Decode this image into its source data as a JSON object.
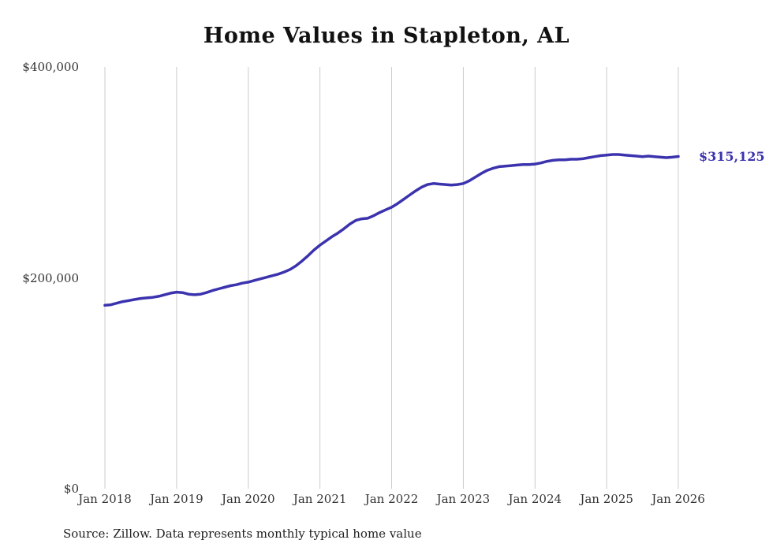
{
  "chart_data": {
    "type": "line",
    "title": "Home Values in Stapleton, AL",
    "source_note": "Source: Zillow. Data represents monthly typical home value",
    "end_label": "$315,125",
    "x_tick_labels": [
      "Jan 2018",
      "Jan 2019",
      "Jan 2020",
      "Jan 2021",
      "Jan 2022",
      "Jan 2023",
      "Jan 2024",
      "Jan 2025",
      "Jan 2026"
    ],
    "y_tick_labels": [
      "$400,000",
      "$200,000",
      "$0"
    ],
    "ylim": [
      0,
      400000
    ],
    "x_start": "2018-01",
    "x_interval": "month",
    "series": [
      {
        "name": "Typical home value",
        "values": [
          174000,
          174500,
          176000,
          177500,
          178500,
          179500,
          180500,
          181000,
          181500,
          182500,
          184000,
          185500,
          186500,
          186000,
          184500,
          184000,
          184500,
          186000,
          188000,
          189500,
          191000,
          192500,
          193500,
          195000,
          196000,
          197500,
          199000,
          200500,
          202000,
          203500,
          205500,
          208000,
          211500,
          216000,
          221000,
          226500,
          231000,
          235000,
          239000,
          242500,
          246500,
          251000,
          254500,
          256000,
          256500,
          259000,
          262000,
          264500,
          267000,
          270500,
          274500,
          278500,
          282500,
          286000,
          288500,
          289500,
          289000,
          288500,
          288000,
          288500,
          289500,
          292000,
          295500,
          299000,
          302000,
          304000,
          305500,
          306000,
          306500,
          307000,
          307500,
          307500,
          308000,
          309000,
          310500,
          311500,
          312000,
          312000,
          312500,
          312500,
          313000,
          314000,
          315000,
          316000,
          316500,
          317000,
          317000,
          316500,
          316000,
          315500,
          315000,
          315500,
          315000,
          314500,
          314000,
          314500,
          315125
        ]
      }
    ],
    "final_value": 315125,
    "line_color": "#3b33ae",
    "gridline_color": "#cccccc",
    "grid": "vertical-only",
    "legend": "none"
  }
}
